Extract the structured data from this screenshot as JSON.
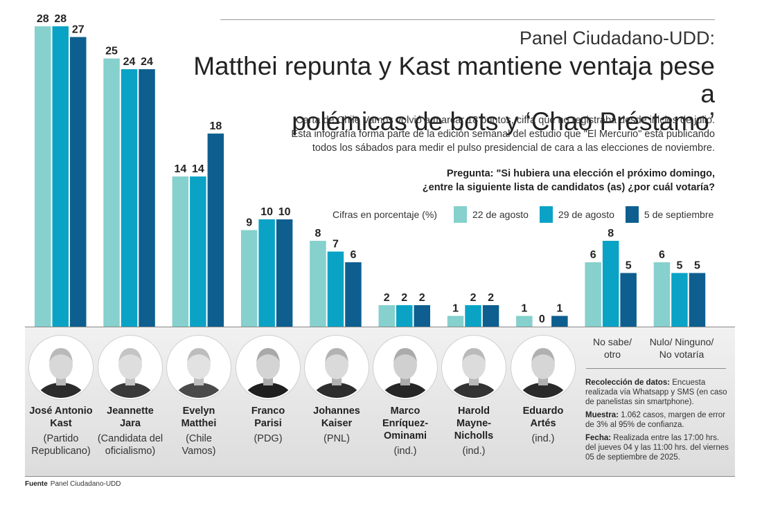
{
  "header": {
    "kicker": "Panel Ciudadano-UDD:",
    "headline_1": "Matthei repunta y Kast mantiene ventaja pese a",
    "headline_2": "polémicas de bots y ‘Chao Préstamo’",
    "intro_1": "Carta de Chile Vamos volvió a marcar 18 puntos, cifra que no registraba desde inicios de julio.",
    "intro_2": "Esta infografía forma parte de la edición semanal del estudio que \"El Mercurio\" está publicando",
    "intro_3": "todos los sábados para medir el pulso presidencial de cara a las elecciones de noviembre.",
    "question_1": "Pregunta: \"Si hubiera una elección el próximo domingo,",
    "question_2": "¿entre la siguiente lista de candidatos (as) ¿por cuál votaría?"
  },
  "legend": {
    "note": "Cifras en porcentaje (%)"
  },
  "chart_data": {
    "type": "bar",
    "categories": [
      "José Antonio Kast",
      "Jeannette Jara",
      "Evelyn Matthei",
      "Franco Parisi",
      "Johannes Kaiser",
      "Marco Enríquez-Ominami",
      "Harold Mayne-Nicholls",
      "Eduardo Artés",
      "No sabe/ otro",
      "Nulo/ Ninguno/ No votaría"
    ],
    "series": [
      {
        "name": "22 de agosto",
        "color": "#86d0cd",
        "values": [
          28,
          25,
          14,
          9,
          8,
          2,
          1,
          1,
          6,
          6
        ]
      },
      {
        "name": "29 de agosto",
        "color": "#0aa3c6",
        "values": [
          28,
          24,
          14,
          10,
          7,
          2,
          2,
          0,
          8,
          5
        ]
      },
      {
        "name": "5 de septiembre",
        "color": "#0e5f8f",
        "values": [
          27,
          24,
          18,
          10,
          6,
          2,
          2,
          1,
          5,
          5
        ]
      }
    ],
    "ylim": [
      0,
      28
    ],
    "unit": "%"
  },
  "candidates": [
    {
      "name_1": "José Antonio",
      "name_2": "Kast",
      "party_1": "(Partido",
      "party_2": "Republicano)"
    },
    {
      "name_1": "Jeannette",
      "name_2": "Jara",
      "party_1": "(Candidata del",
      "party_2": "oficialismo)"
    },
    {
      "name_1": "Evelyn",
      "name_2": "Matthei",
      "party_1": "(Chile",
      "party_2": "Vamos)"
    },
    {
      "name_1": "Franco",
      "name_2": "Parisi",
      "party_1": "(PDG)",
      "party_2": ""
    },
    {
      "name_1": "Johannes",
      "name_2": "Kaiser",
      "party_1": "(PNL)",
      "party_2": ""
    },
    {
      "name_1": "Marco",
      "name_2": "Enríquez-",
      "name_3": "Ominami",
      "party_1": "(ind.)",
      "party_2": ""
    },
    {
      "name_1": "Harold",
      "name_2": "Mayne-",
      "name_3": "Nicholls",
      "party_1": "(ind.)",
      "party_2": ""
    },
    {
      "name_1": "Eduardo",
      "name_2": "Artés",
      "party_1": "(ind.)",
      "party_2": ""
    }
  ],
  "other_labels": {
    "no_sabe_1": "No sabe/",
    "no_sabe_2": "otro",
    "nulo_1": "Nulo/ Ninguno/",
    "nulo_2": "No votaría"
  },
  "methods": {
    "recoleccion_label": "Recolección de datos:",
    "recoleccion_text": "Encuesta realizada vía Whatsapp y SMS (en caso de panelistas sin smartphone).",
    "muestra_label": "Muestra:",
    "muestra_text": "1.062 casos, margen de error de 3% al 95% de confianza.",
    "fecha_label": "Fecha:",
    "fecha_text": "Realizada entre las 17:00 hrs. del jueves 04 y las 11:00 hrs. del viernes 05 de septiembre de 2025."
  },
  "source": {
    "label": "Fuente",
    "text": "Panel Ciudadano-UDD"
  }
}
